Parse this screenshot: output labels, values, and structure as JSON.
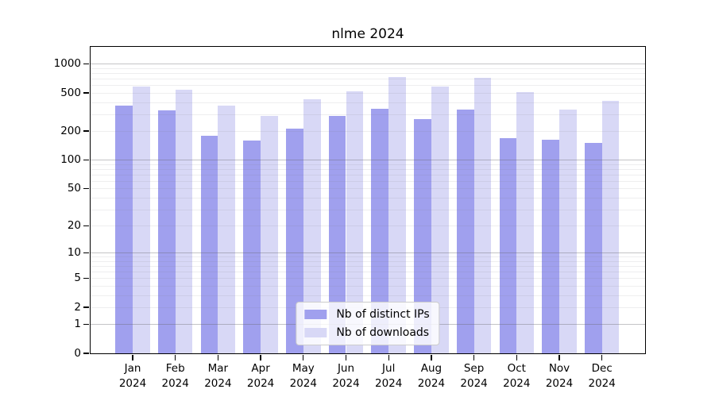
{
  "chart_data": {
    "type": "bar",
    "title": "nlme 2024",
    "xlabel": "",
    "ylabel": "",
    "categories": [
      "Jan",
      "Feb",
      "Mar",
      "Apr",
      "May",
      "Jun",
      "Jul",
      "Aug",
      "Sep",
      "Oct",
      "Nov",
      "Dec"
    ],
    "year_label": "2024",
    "series": [
      {
        "name": "Nb of distinct IPs",
        "color": "#a0a0ee",
        "values": [
          365,
          330,
          178,
          161,
          213,
          287,
          340,
          266,
          332,
          169,
          163,
          151
        ]
      },
      {
        "name": "Nb of downloads",
        "color": "#d8d8f6",
        "values": [
          578,
          540,
          370,
          290,
          425,
          520,
          725,
          582,
          715,
          505,
          335,
          410
        ]
      }
    ],
    "y_axis": {
      "scale": "log1p",
      "ticks": [
        1000,
        500,
        200,
        100,
        50,
        20,
        10,
        5,
        2,
        1,
        0
      ],
      "major_gridlines": [
        1,
        10,
        100,
        1000
      ],
      "minor_gridlines": [
        2,
        3,
        4,
        5,
        6,
        7,
        8,
        9,
        20,
        30,
        40,
        50,
        60,
        70,
        80,
        90,
        200,
        300,
        400,
        500,
        600,
        700,
        800,
        900
      ],
      "ylim_top": 1500
    },
    "legend": {
      "position": "bottom-center"
    }
  }
}
